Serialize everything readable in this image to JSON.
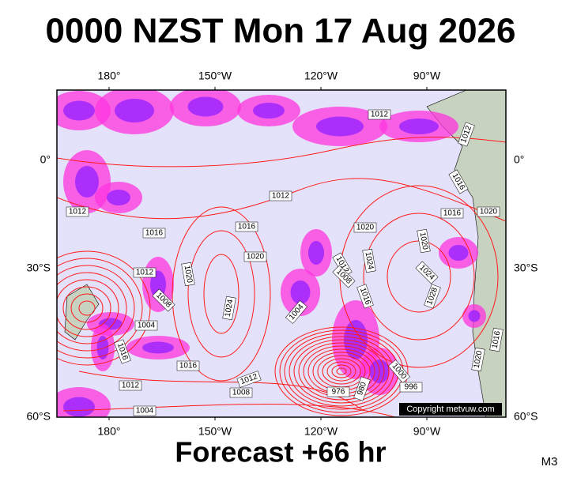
{
  "title": "0000 NZST Mon 17 Aug 2026",
  "map": {
    "top_lon_labels": [
      "180°",
      "150°W",
      "120°W",
      "90°W"
    ],
    "bottom_lon_labels": [
      "180°",
      "150°W",
      "120°W",
      "90°W"
    ],
    "left_lat_labels": [
      "0°",
      "30°S",
      "60°S"
    ],
    "right_lat_labels": [
      "0°",
      "30°S",
      "60°S"
    ],
    "isobar_labels": [
      1012,
      1012,
      1016,
      1012,
      1012,
      1016,
      1016,
      1020,
      1020,
      1016,
      1020,
      1020,
      1024,
      1028,
      1012,
      1020,
      1008,
      1024,
      1004,
      1012,
      1008,
      1024,
      1016,
      1004,
      1016,
      1016,
      1012,
      1012,
      1008,
      1004,
      976,
      980,
      1000,
      996,
      1016,
      1020
    ],
    "copyright": "Copyright metvuw.com"
  },
  "footer": "Forecast +66 hr",
  "model": "M3"
}
